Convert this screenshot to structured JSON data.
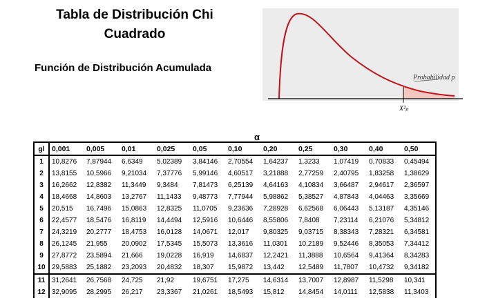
{
  "title": "Tabla de Distribución Chi Cuadrado",
  "subtitle": "Función de Distribución Acumulada",
  "figure": {
    "probability_label": "Probabilidad p",
    "x_label": "X²ₚ",
    "curve_color": "#c0141c",
    "shade_color": "#f3c7c0",
    "background_color": "#ececec"
  },
  "table": {
    "alpha_symbol": "α",
    "df_header": "gl",
    "columns": [
      "0,001",
      "0,005",
      "0,01",
      "0,025",
      "0,05",
      "0,10",
      "0,20",
      "0,25",
      "0,30",
      "0,40",
      "0,50"
    ],
    "rows": [
      {
        "gl": "1",
        "values": [
          "10,8276",
          "7,87944",
          "6,6349",
          "5,02389",
          "3,84146",
          "2,70554",
          "1,64237",
          "1,3233",
          "1,07419",
          "0,70833",
          "0,45494"
        ]
      },
      {
        "gl": "2",
        "values": [
          "13,8155",
          "10,5966",
          "9,21034",
          "7,37776",
          "5,99146",
          "4,60517",
          "3,21888",
          "2,77259",
          "2,40795",
          "1,83258",
          "1,38629"
        ]
      },
      {
        "gl": "3",
        "values": [
          "16,2662",
          "12,8382",
          "11,3449",
          "9,3484",
          "7,81473",
          "6,25139",
          "4,64163",
          "4,10834",
          "3,66487",
          "2,94617",
          "2,36597"
        ]
      },
      {
        "gl": "4",
        "values": [
          "18,4668",
          "14,8603",
          "13,2767",
          "11,1433",
          "9,48773",
          "7,77944",
          "5,98862",
          "5,38527",
          "4,87843",
          "4,04463",
          "3,35669"
        ]
      },
      {
        "gl": "5",
        "values": [
          "20,515",
          "16,7496",
          "15,0863",
          "12,8325",
          "11,0705",
          "9,23636",
          "7,28928",
          "6,62568",
          "6,06443",
          "5,13187",
          "4,35146"
        ]
      },
      {
        "gl": "6",
        "values": [
          "22,4577",
          "18,5476",
          "16,8119",
          "14,4494",
          "12,5916",
          "10,6446",
          "8,55806",
          "7,8408",
          "7,23114",
          "6,21076",
          "5,34812"
        ]
      },
      {
        "gl": "7",
        "values": [
          "24,3219",
          "20,2777",
          "18,4753",
          "16,0128",
          "14,0671",
          "12,017",
          "9,80325",
          "9,03715",
          "8,38343",
          "7,28321",
          "6,34581"
        ]
      },
      {
        "gl": "8",
        "values": [
          "26,1245",
          "21,955",
          "20,0902",
          "17,5345",
          "15,5073",
          "13,3616",
          "11,0301",
          "10,2189",
          "9,52446",
          "8,35053",
          "7,34412"
        ]
      },
      {
        "gl": "9",
        "values": [
          "27,8772",
          "23,5894",
          "21,666",
          "19,0228",
          "16,919",
          "14,6837",
          "12,2421",
          "11,3888",
          "10,6564",
          "9,41364",
          "8,34283"
        ]
      },
      {
        "gl": "10",
        "values": [
          "29,5883",
          "25,1882",
          "23,2093",
          "20,4832",
          "18,307",
          "15,9872",
          "13,442",
          "12,5489",
          "11,7807",
          "10,4732",
          "9,34182"
        ]
      },
      {
        "gl": "11",
        "values": [
          "31,2641",
          "26,7568",
          "24,725",
          "21,92",
          "19,6751",
          "17,275",
          "14,6314",
          "13,7007",
          "12,8987",
          "11,5298",
          "10,341"
        ]
      },
      {
        "gl": "12",
        "values": [
          "32,9095",
          "28,2995",
          "26,217",
          "23,3367",
          "21,0261",
          "18,5493",
          "15,812",
          "14,8454",
          "14,0111",
          "12,5838",
          "11,3403"
        ]
      }
    ]
  }
}
